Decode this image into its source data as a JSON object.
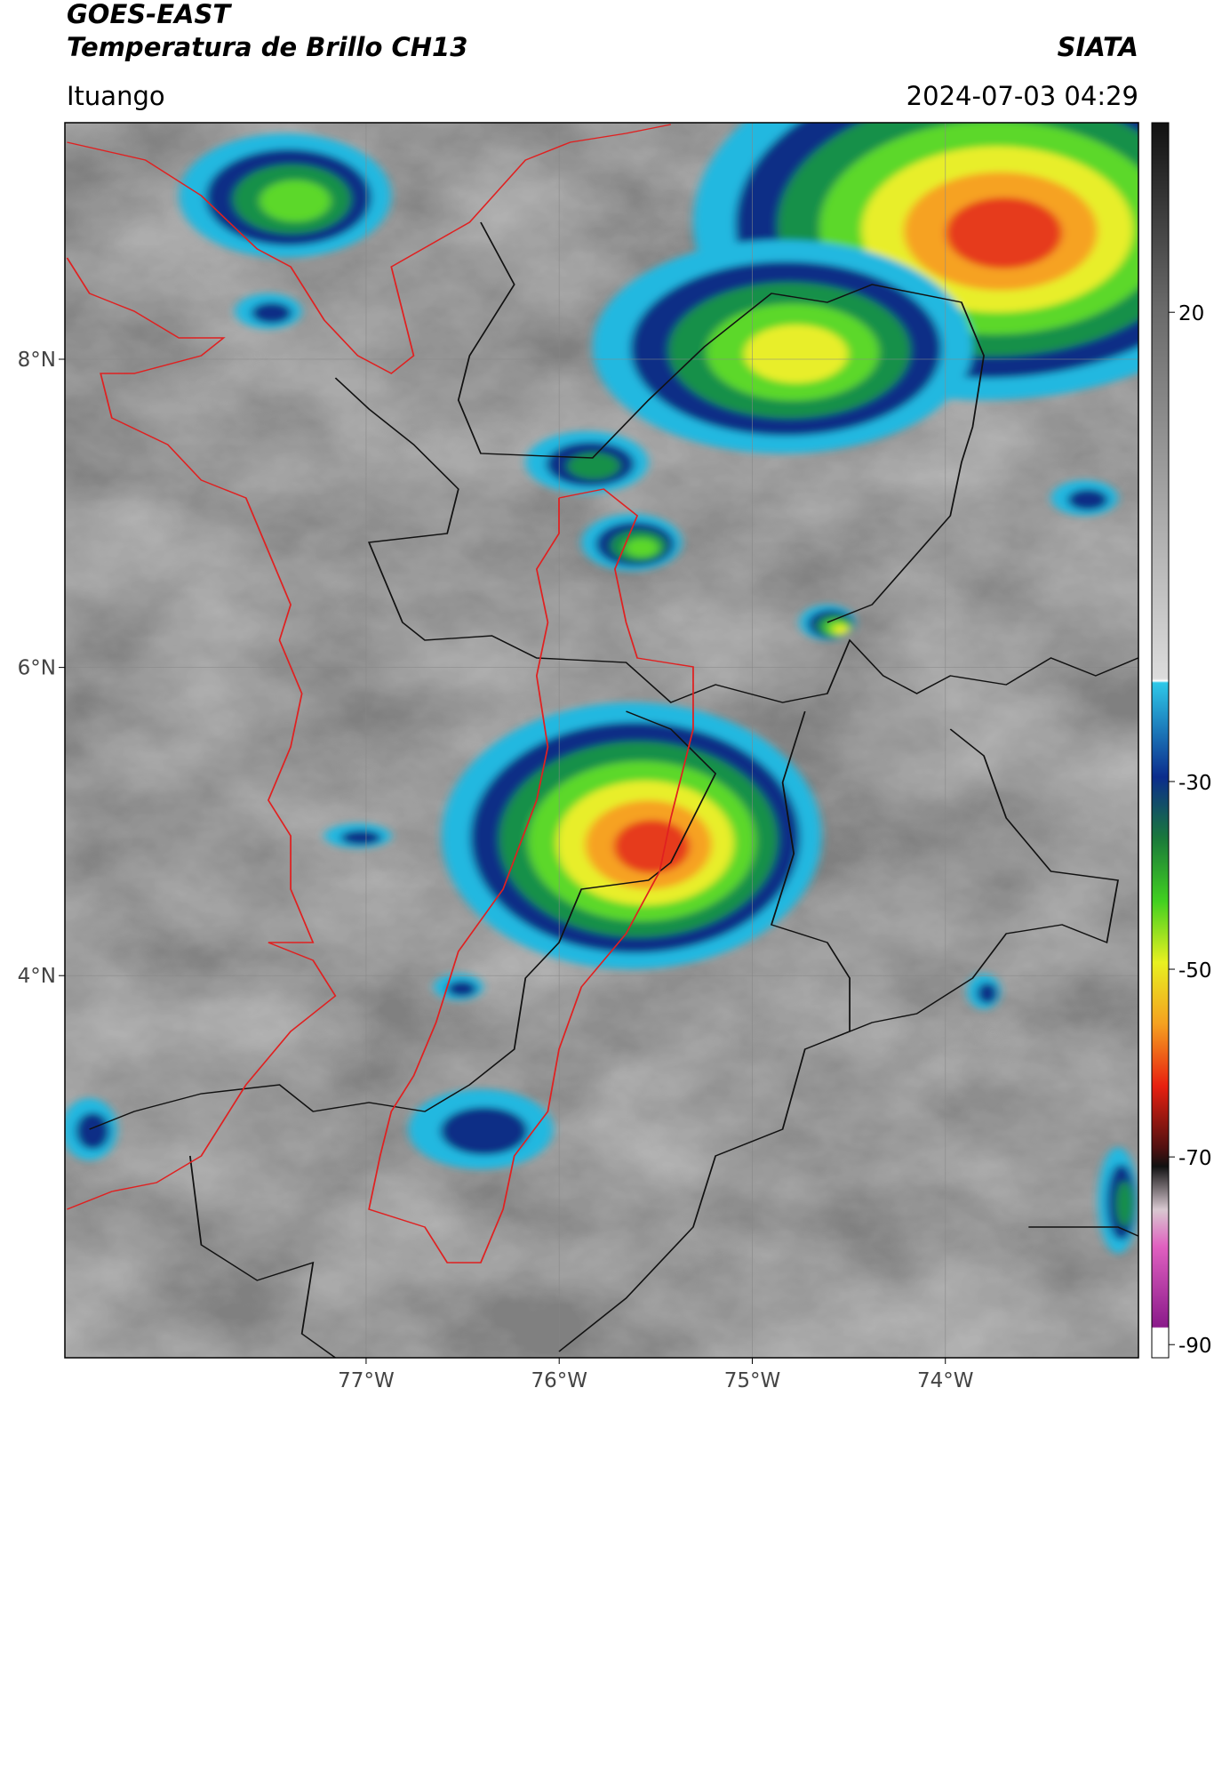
{
  "header": {
    "title": "GOES-EAST",
    "subtitle": "Temperatura de Brillo CH13",
    "source": "SIATA",
    "location": "Ituango",
    "datetime": "2024-07-03 04:29"
  },
  "map": {
    "xlim": [
      -78.56,
      -73.0
    ],
    "ylim": [
      1.52,
      9.535
    ],
    "xticks": [
      {
        "value": -77,
        "label": "77°W"
      },
      {
        "value": -76,
        "label": "76°W"
      },
      {
        "value": -75,
        "label": "75°W"
      },
      {
        "value": -74,
        "label": "74°W"
      }
    ],
    "yticks": [
      {
        "value": 8,
        "label": "8°N"
      },
      {
        "value": 6,
        "label": "6°N"
      },
      {
        "value": 4,
        "label": "4°N"
      }
    ],
    "grid": true
  },
  "colorbar": {
    "lim": [
      -91.4,
      40.2
    ],
    "ticks": [
      20,
      -30,
      -50,
      -70,
      -90
    ]
  }
}
